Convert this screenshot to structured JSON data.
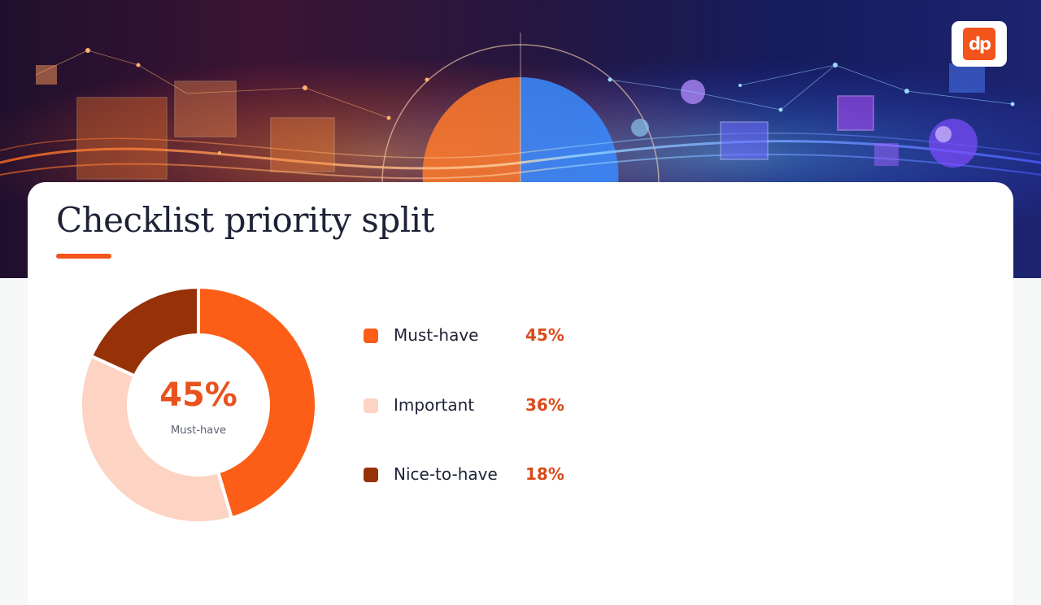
{
  "slide": {
    "title": "Checklist priority split",
    "logo_text": "dp",
    "accent_color": "#f2541b"
  },
  "chart_data": {
    "type": "pie",
    "variant": "donut",
    "title": "",
    "center": {
      "value": "45%",
      "label": "Must-have"
    },
    "slices": [
      {
        "label": "Must-have",
        "value": 45,
        "value_label": "45%",
        "color": "#fc5e17"
      },
      {
        "label": "Important",
        "value": 36,
        "value_label": "36%",
        "color": "#fdd3c3"
      },
      {
        "label": "Nice-to-have",
        "value": 18,
        "value_label": "18%",
        "color": "#963108"
      }
    ],
    "legend_position": "right"
  }
}
